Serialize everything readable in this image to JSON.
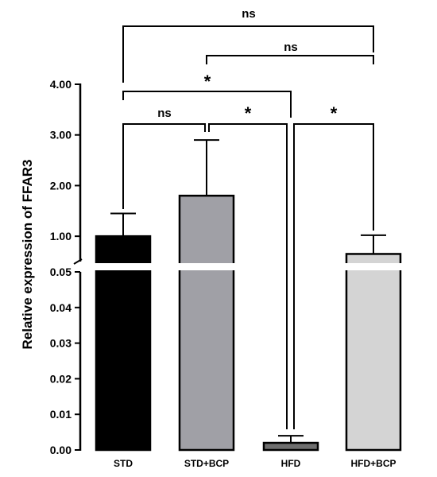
{
  "chart_data": {
    "type": "bar",
    "ylabel": "Relative expression of FFAR3",
    "categories": [
      "STD",
      "STD+BCP",
      "HFD",
      "HFD+BCP"
    ],
    "values": [
      1.0,
      1.8,
      0.002,
      0.65
    ],
    "error": [
      0.45,
      1.1,
      0.002,
      0.37
    ],
    "bar_colors": [
      "#000000",
      "#a0a0a6",
      "#6e6e6e",
      "#d4d4d4"
    ],
    "y_axis_broken": true,
    "lower_segment": {
      "ylim": [
        0,
        0.05
      ],
      "ticks": [
        0.0,
        0.01,
        0.02,
        0.03,
        0.04,
        0.05
      ],
      "tick_labels": [
        "0.00",
        "0.01",
        "0.02",
        "0.03",
        "0.04",
        "0.05"
      ]
    },
    "upper_segment": {
      "ylim": [
        0.5,
        4.0
      ],
      "ticks": [
        1.0,
        2.0,
        3.0,
        4.0
      ],
      "tick_labels": [
        "1.00",
        "2.00",
        "3.00",
        "4.00"
      ]
    },
    "significance": [
      {
        "from": "STD",
        "to": "HFD+BCP",
        "label": "ns"
      },
      {
        "from": "STD+BCP",
        "to": "HFD+BCP",
        "label": "ns"
      },
      {
        "from": "STD",
        "to": "HFD",
        "label": "*"
      },
      {
        "from": "STD",
        "to": "STD+BCP",
        "label": "ns"
      },
      {
        "from": "STD+BCP",
        "to": "HFD",
        "label": "*"
      },
      {
        "from": "HFD",
        "to": "HFD+BCP",
        "label": "*"
      }
    ]
  }
}
